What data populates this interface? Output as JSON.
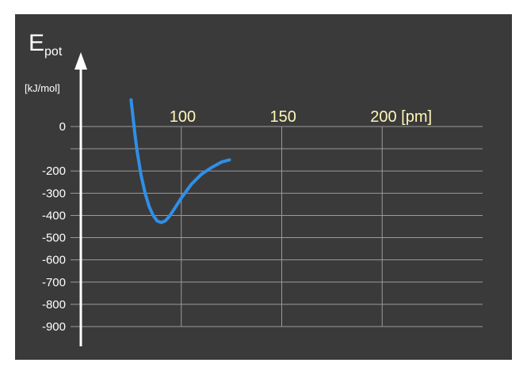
{
  "chart_data": {
    "type": "line",
    "ylabel_main": "E",
    "ylabel_sub": "pot",
    "yunit": "[kJ/mol]",
    "xunit": "[pm]",
    "x_tick_values": [
      100,
      150,
      200
    ],
    "x_tick_labels": [
      "100",
      "150",
      "200 [pm]"
    ],
    "y_tick_values": [
      0,
      -100,
      -200,
      -300,
      -400,
      -500,
      -600,
      -700,
      -800,
      -900
    ],
    "y_tick_labels": [
      "0",
      "-200",
      "-300",
      "-400",
      "-500",
      "-600",
      "-700",
      "-800",
      "-900"
    ],
    "y_tick_label_values": [
      0,
      -200,
      -300,
      -400,
      -500,
      -600,
      -700,
      -800,
      -900
    ],
    "xlim": [
      50,
      250
    ],
    "ylim": [
      -900,
      0
    ],
    "grid": true,
    "series": [
      {
        "x": [
          75,
          76,
          77,
          78,
          80,
          82,
          84,
          86,
          88,
          90,
          92,
          94,
          96,
          98,
          100,
          105,
          110,
          115,
          120,
          124
        ],
        "values": [
          120,
          40,
          -40,
          -110,
          -220,
          -300,
          -360,
          -400,
          -425,
          -432,
          -425,
          -405,
          -378,
          -350,
          -322,
          -260,
          -215,
          -185,
          -160,
          -150
        ]
      }
    ],
    "colors": {
      "background": "#3a3a3a",
      "grid": "#9a9a9a",
      "axis": "#ffffff",
      "line": "#2f8fe8",
      "x_tick_text": "#fff7b8",
      "y_tick_text": "#ffffff"
    }
  }
}
